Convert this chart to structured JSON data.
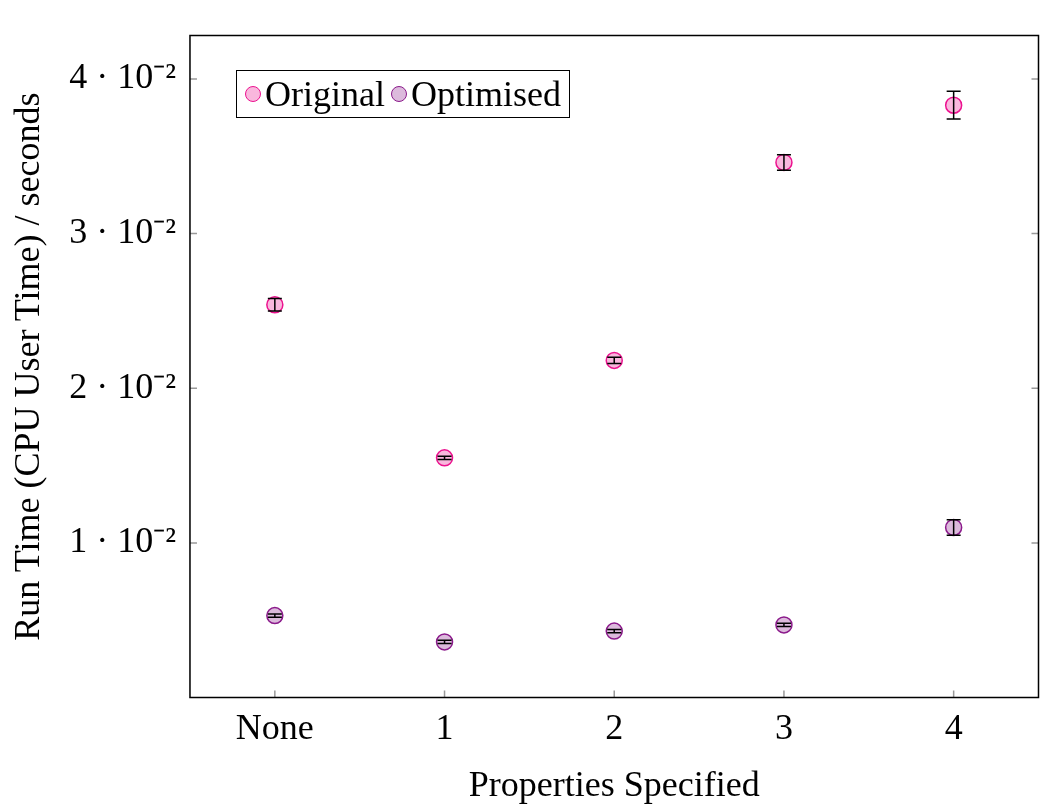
{
  "chart_data": {
    "type": "scatter",
    "xlabel": "Properties Specified",
    "ylabel": "Run Time (CPU User Time) / seconds",
    "categories": [
      "None",
      "1",
      "2",
      "3",
      "4"
    ],
    "ylim": [
      0,
      0.0428
    ],
    "yticks": [
      {
        "value": 0.01,
        "label": "1 · 10⁻²"
      },
      {
        "value": 0.02,
        "label": "2 · 10⁻²"
      },
      {
        "value": 0.03,
        "label": "3 · 10⁻²"
      },
      {
        "value": 0.04,
        "label": "4 · 10⁻²"
      }
    ],
    "grid": false,
    "legend": "top left",
    "marker": "circle",
    "series": [
      {
        "name": "Original",
        "color": "#ec128f",
        "values": [
          0.0254,
          0.0155,
          0.0218,
          0.0346,
          0.0383
        ],
        "errors": [
          0.0004,
          0.0001,
          0.0002,
          0.0005,
          0.0009
        ]
      },
      {
        "name": "Optimised",
        "color": "#8b1a8b",
        "values": [
          0.0053,
          0.0036,
          0.0043,
          0.0047,
          0.011
        ],
        "errors": [
          0.0001,
          0.0001,
          0.0001,
          0.0001,
          0.0005
        ]
      }
    ]
  }
}
